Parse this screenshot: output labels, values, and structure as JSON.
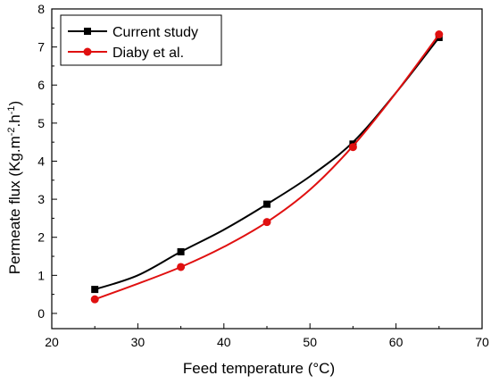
{
  "chart_data": {
    "type": "line",
    "xlabel": "Feed temperature (°C)",
    "ylabel": "Permeate flux (Kg.m",
    "ylabel_sup1": "-2",
    "ylabel_mid": ".h",
    "ylabel_sup2": "-1",
    "ylabel_end": ")",
    "xlim": [
      20,
      70
    ],
    "ylim": [
      -0.4,
      8
    ],
    "xticks": [
      20,
      30,
      40,
      50,
      60,
      70
    ],
    "yticks": [
      0,
      1,
      2,
      3,
      4,
      5,
      6,
      7,
      8
    ],
    "x_tick_labels": [
      "20",
      "30",
      "40",
      "50",
      "60",
      "70"
    ],
    "y_tick_labels": [
      "0",
      "1",
      "2",
      "3",
      "4",
      "5",
      "6",
      "7",
      "8"
    ],
    "grid": false,
    "legend_position": "top-left",
    "series": [
      {
        "name": "Current study",
        "color": "#000000",
        "marker": "square",
        "x": [
          25,
          35,
          45,
          55,
          65
        ],
        "y": [
          0.63,
          1.62,
          2.87,
          4.45,
          7.25
        ],
        "curve": [
          0.63,
          1.0,
          1.62,
          2.2,
          2.87,
          3.6,
          4.5,
          5.8,
          7.25
        ]
      },
      {
        "name": "Diaby et al.",
        "color": "#e01010",
        "marker": "circle",
        "x": [
          25,
          35,
          45,
          55,
          65
        ],
        "y": [
          0.37,
          1.22,
          2.4,
          4.37,
          7.33
        ],
        "curve": [
          0.37,
          0.78,
          1.22,
          1.75,
          2.4,
          3.25,
          4.4,
          5.8,
          7.33
        ]
      }
    ],
    "curve_x": [
      25,
      30,
      35,
      40,
      45,
      50,
      55,
      60,
      65
    ]
  }
}
